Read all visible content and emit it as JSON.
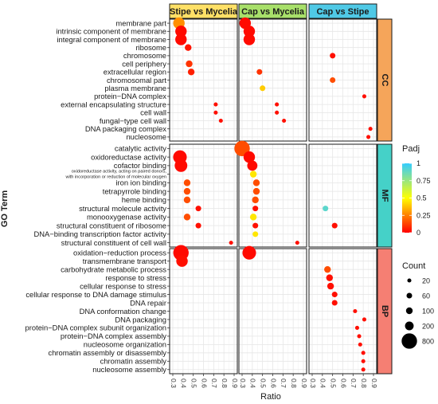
{
  "chart_data": {
    "type": "scatter",
    "subtype": "faceted-dot-plot",
    "xlabel": "Ratio",
    "ylabel": "GO Term",
    "xlim": [
      0.3,
      0.9
    ],
    "xticks": [
      "0.3",
      "0.4",
      "0.5",
      "0.6",
      "0.7",
      "0.8",
      "0.9"
    ],
    "grid": true,
    "comparisons": [
      "Stipe vs Mycelia",
      "Cap vs Mycelia",
      "Cap vs Stipe"
    ],
    "strip_colors": {
      "Stipe vs Mycelia": "#ffe066",
      "Cap vs Mycelia": "#a8e06a",
      "Cap vs Stipe": "#4fc9e6",
      "CC": "#f5a55a",
      "MF": "#45d1c8",
      "BP": "#f57f73"
    },
    "categories": [
      {
        "name": "CC",
        "terms": [
          "membrane part",
          "intrinsic component of membrane",
          "integral component of membrane",
          "ribosome",
          "chromosome",
          "cell periphery",
          "extracellular region",
          "chromosomal part",
          "plasma membrane",
          "protein−DNA complex",
          "external encapsulating structure",
          "cell wall",
          "fungal−type cell wall",
          "DNA packaging complex",
          "nucleosome"
        ]
      },
      {
        "name": "MF",
        "terms": [
          "catalytic activity",
          "oxidoreductase activity",
          "cofactor binding",
          "oxidoreductase activity, acting on paired donors,",
          "iron ion binding",
          "tetrapyrrole binding",
          "heme binding",
          "structural molecule activity",
          "monooxygenase activity",
          "structural constituent of ribosome",
          "DNA−binding transcription factor activity",
          "structural constituent of cell wall"
        ]
      },
      {
        "name": "BP",
        "terms": [
          "oxidation−reduction process",
          "transmembrane transport",
          "carbohydrate metabolic process",
          "response to stress",
          "cellular response to stress",
          "cellular response to DNA damage stimulus",
          "DNA repair",
          "DNA conformation change",
          "DNA packaging",
          "protein−DNA complex subunit organization",
          "protein−DNA complex assembly",
          "nucleosome organization",
          "chromatin assembly or disassembly",
          "chromatin assembly",
          "nucleosome assembly"
        ]
      }
    ],
    "term_label_line2": {
      "oxidoreductase activity, acting on paired donors,": "with incorporation or reduction of molecular oxygen"
    },
    "points": [
      {
        "panel": "Stipe vs Mycelia",
        "term": "membrane part",
        "x": 0.36,
        "padj": 0.28,
        "count": 400
      },
      {
        "panel": "Stipe vs Mycelia",
        "term": "intrinsic component of membrane",
        "x": 0.38,
        "padj": 0.02,
        "count": 400
      },
      {
        "panel": "Stipe vs Mycelia",
        "term": "integral component of membrane",
        "x": 0.38,
        "padj": 0.02,
        "count": 400
      },
      {
        "panel": "Stipe vs Mycelia",
        "term": "ribosome",
        "x": 0.45,
        "padj": 0.04,
        "count": 100
      },
      {
        "panel": "Stipe vs Mycelia",
        "term": "cell periphery",
        "x": 0.46,
        "padj": 0.1,
        "count": 100
      },
      {
        "panel": "Stipe vs Mycelia",
        "term": "extracellular region",
        "x": 0.48,
        "padj": 0.06,
        "count": 100
      },
      {
        "panel": "Stipe vs Mycelia",
        "term": "external encapsulating structure",
        "x": 0.72,
        "padj": 0.03,
        "count": 20
      },
      {
        "panel": "Stipe vs Mycelia",
        "term": "cell wall",
        "x": 0.72,
        "padj": 0.03,
        "count": 20
      },
      {
        "panel": "Stipe vs Mycelia",
        "term": "fungal−type cell wall",
        "x": 0.77,
        "padj": 0.03,
        "count": 20
      },
      {
        "panel": "Stipe vs Mycelia",
        "term": "oxidoreductase activity",
        "x": 0.37,
        "padj": 0.02,
        "count": 600
      },
      {
        "panel": "Stipe vs Mycelia",
        "term": "cofactor binding",
        "x": 0.38,
        "padj": 0.02,
        "count": 500
      },
      {
        "panel": "Stipe vs Mycelia",
        "term": "iron ion binding",
        "x": 0.44,
        "padj": 0.15,
        "count": 100
      },
      {
        "panel": "Stipe vs Mycelia",
        "term": "tetrapyrrole binding",
        "x": 0.44,
        "padj": 0.15,
        "count": 100
      },
      {
        "panel": "Stipe vs Mycelia",
        "term": "heme binding",
        "x": 0.44,
        "padj": 0.15,
        "count": 100
      },
      {
        "panel": "Stipe vs Mycelia",
        "term": "structural molecule activity",
        "x": 0.55,
        "padj": 0.03,
        "count": 60
      },
      {
        "panel": "Stipe vs Mycelia",
        "term": "monooxygenase activity",
        "x": 0.44,
        "padj": 0.15,
        "count": 100
      },
      {
        "panel": "Stipe vs Mycelia",
        "term": "structural constituent of ribosome",
        "x": 0.55,
        "padj": 0.03,
        "count": 60
      },
      {
        "panel": "Stipe vs Mycelia",
        "term": "structural constituent of cell wall",
        "x": 0.87,
        "padj": 0.03,
        "count": 20
      },
      {
        "panel": "Stipe vs Mycelia",
        "term": "oxidation−reduction process",
        "x": 0.38,
        "padj": 0.02,
        "count": 800
      },
      {
        "panel": "Stipe vs Mycelia",
        "term": "transmembrane transport",
        "x": 0.39,
        "padj": 0.03,
        "count": 400
      },
      {
        "panel": "Cap vs Mycelia",
        "term": "membrane part",
        "x": 0.33,
        "padj": 0.02,
        "count": 400
      },
      {
        "panel": "Cap vs Mycelia",
        "term": "intrinsic component of membrane",
        "x": 0.37,
        "padj": 0.02,
        "count": 400
      },
      {
        "panel": "Cap vs Mycelia",
        "term": "integral component of membrane",
        "x": 0.37,
        "padj": 0.02,
        "count": 400
      },
      {
        "panel": "Cap vs Mycelia",
        "term": "extracellular region",
        "x": 0.47,
        "padj": 0.1,
        "count": 60
      },
      {
        "panel": "Cap vs Mycelia",
        "term": "plasma membrane",
        "x": 0.5,
        "padj": 0.4,
        "count": 60
      },
      {
        "panel": "Cap vs Mycelia",
        "term": "external encapsulating structure",
        "x": 0.64,
        "padj": 0.03,
        "count": 20
      },
      {
        "panel": "Cap vs Mycelia",
        "term": "cell wall",
        "x": 0.64,
        "padj": 0.03,
        "count": 20
      },
      {
        "panel": "Cap vs Mycelia",
        "term": "fungal−type cell wall",
        "x": 0.71,
        "padj": 0.03,
        "count": 20
      },
      {
        "panel": "Cap vs Mycelia",
        "term": "catalytic activity",
        "x": 0.3,
        "padj": 0.15,
        "count": 800
      },
      {
        "panel": "Cap vs Mycelia",
        "term": "oxidoreductase activity",
        "x": 0.37,
        "padj": 0.02,
        "count": 400
      },
      {
        "panel": "Cap vs Mycelia",
        "term": "cofactor binding",
        "x": 0.4,
        "padj": 0.02,
        "count": 300
      },
      {
        "panel": "Cap vs Mycelia",
        "term": "oxidoreductase activity, acting on paired donors,",
        "x": 0.41,
        "padj": 0.45,
        "count": 100
      },
      {
        "panel": "Cap vs Mycelia",
        "term": "iron ion binding",
        "x": 0.44,
        "padj": 0.15,
        "count": 100
      },
      {
        "panel": "Cap vs Mycelia",
        "term": "tetrapyrrole binding",
        "x": 0.44,
        "padj": 0.15,
        "count": 100
      },
      {
        "panel": "Cap vs Mycelia",
        "term": "heme binding",
        "x": 0.43,
        "padj": 0.15,
        "count": 100
      },
      {
        "panel": "Cap vs Mycelia",
        "term": "structural molecule activity",
        "x": 0.43,
        "padj": 0.03,
        "count": 60
      },
      {
        "panel": "Cap vs Mycelia",
        "term": "monooxygenase activity",
        "x": 0.41,
        "padj": 0.45,
        "count": 100
      },
      {
        "panel": "Cap vs Mycelia",
        "term": "structural constituent of ribosome",
        "x": 0.43,
        "padj": 0.03,
        "count": 60
      },
      {
        "panel": "Cap vs Mycelia",
        "term": "DNA−binding transcription factor activity",
        "x": 0.43,
        "padj": 0.45,
        "count": 60
      },
      {
        "panel": "Cap vs Mycelia",
        "term": "structural constituent of cell wall",
        "x": 0.84,
        "padj": 0.03,
        "count": 20
      },
      {
        "panel": "Cap vs Mycelia",
        "term": "oxidation−reduction process",
        "x": 0.37,
        "padj": 0.02,
        "count": 600
      },
      {
        "panel": "Cap vs Stipe",
        "term": "chromosome",
        "x": 0.5,
        "padj": 0.03,
        "count": 60
      },
      {
        "panel": "Cap vs Stipe",
        "term": "chromosomal part",
        "x": 0.5,
        "padj": 0.15,
        "count": 60
      },
      {
        "panel": "Cap vs Stipe",
        "term": "protein−DNA complex",
        "x": 0.81,
        "padj": 0.03,
        "count": 20
      },
      {
        "panel": "Cap vs Stipe",
        "term": "DNA packaging complex",
        "x": 0.87,
        "padj": 0.03,
        "count": 20
      },
      {
        "panel": "Cap vs Stipe",
        "term": "nucleosome",
        "x": 0.85,
        "padj": 0.03,
        "count": 20
      },
      {
        "panel": "Cap vs Stipe",
        "term": "structural molecule activity",
        "x": 0.43,
        "padj": 0.9,
        "count": 60
      },
      {
        "panel": "Cap vs Stipe",
        "term": "structural constituent of ribosome",
        "x": 0.52,
        "padj": 0.03,
        "count": 60
      },
      {
        "panel": "Cap vs Stipe",
        "term": "carbohydrate metabolic process",
        "x": 0.45,
        "padj": 0.15,
        "count": 100
      },
      {
        "panel": "Cap vs Stipe",
        "term": "response to stress",
        "x": 0.47,
        "padj": 0.03,
        "count": 100
      },
      {
        "panel": "Cap vs Stipe",
        "term": "cellular response to stress",
        "x": 0.48,
        "padj": 0.03,
        "count": 100
      },
      {
        "panel": "Cap vs Stipe",
        "term": "cellular response to DNA damage stimulus",
        "x": 0.52,
        "padj": 0.03,
        "count": 60
      },
      {
        "panel": "Cap vs Stipe",
        "term": "DNA repair",
        "x": 0.52,
        "padj": 0.03,
        "count": 60
      },
      {
        "panel": "Cap vs Stipe",
        "term": "DNA conformation change",
        "x": 0.72,
        "padj": 0.03,
        "count": 20
      },
      {
        "panel": "Cap vs Stipe",
        "term": "DNA packaging",
        "x": 0.81,
        "padj": 0.03,
        "count": 20
      },
      {
        "panel": "Cap vs Stipe",
        "term": "protein−DNA complex subunit organization",
        "x": 0.74,
        "padj": 0.03,
        "count": 20
      },
      {
        "panel": "Cap vs Stipe",
        "term": "protein−DNA complex assembly",
        "x": 0.76,
        "padj": 0.03,
        "count": 20
      },
      {
        "panel": "Cap vs Stipe",
        "term": "nucleosome organization",
        "x": 0.77,
        "padj": 0.03,
        "count": 20
      },
      {
        "panel": "Cap vs Stipe",
        "term": "chromatin assembly or disassembly",
        "x": 0.8,
        "padj": 0.03,
        "count": 20
      },
      {
        "panel": "Cap vs Stipe",
        "term": "chromatin assembly",
        "x": 0.8,
        "padj": 0.03,
        "count": 20
      },
      {
        "panel": "Cap vs Stipe",
        "term": "nucleosome assembly",
        "x": 0.8,
        "padj": 0.03,
        "count": 20
      }
    ],
    "legend_color": {
      "title": "Padj",
      "ticks": [
        "1",
        "0.75",
        "0.5",
        "0.25",
        "0"
      ],
      "colors": [
        "#ff0000",
        "#ff8000",
        "#ffff00",
        "#33ccff"
      ],
      "placement": "right"
    },
    "legend_size": {
      "title": "Count",
      "items": [
        "20",
        "60",
        "100",
        "200",
        "800"
      ],
      "placement": "right"
    }
  }
}
